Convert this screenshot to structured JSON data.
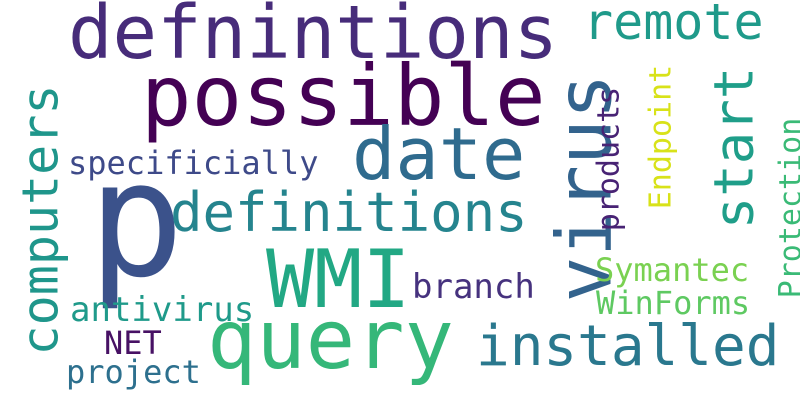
{
  "words": [
    {
      "text": "defnintions",
      "color": "#472c7a"
    },
    {
      "text": "possible",
      "color": "#440154"
    },
    {
      "text": "remote",
      "color": "#1f9a8a"
    },
    {
      "text": "date",
      "color": "#2f6b8e"
    },
    {
      "text": "virus",
      "color": "#33638d"
    },
    {
      "text": "p",
      "color": "#3b528b"
    },
    {
      "text": "computers",
      "color": "#1f968b"
    },
    {
      "text": "specificially",
      "color": "#3e4a89"
    },
    {
      "text": "start",
      "color": "#1f9e89"
    },
    {
      "text": "products",
      "color": "#482374"
    },
    {
      "text": "Endpoint",
      "color": "#d8e219"
    },
    {
      "text": "definitions",
      "color": "#25848e"
    },
    {
      "text": "Protection",
      "color": "#3aba76"
    },
    {
      "text": "WMI",
      "color": "#22a884"
    },
    {
      "text": "Symantec",
      "color": "#7ad151"
    },
    {
      "text": "branch",
      "color": "#46327e"
    },
    {
      "text": "antivirus",
      "color": "#1f9a8a"
    },
    {
      "text": "WinForms",
      "color": "#5ec962"
    },
    {
      "text": "query",
      "color": "#35b779"
    },
    {
      "text": "installed",
      "color": "#2a788e"
    },
    {
      "text": "NET",
      "color": "#471164"
    },
    {
      "text": "project",
      "color": "#2d708e"
    }
  ]
}
